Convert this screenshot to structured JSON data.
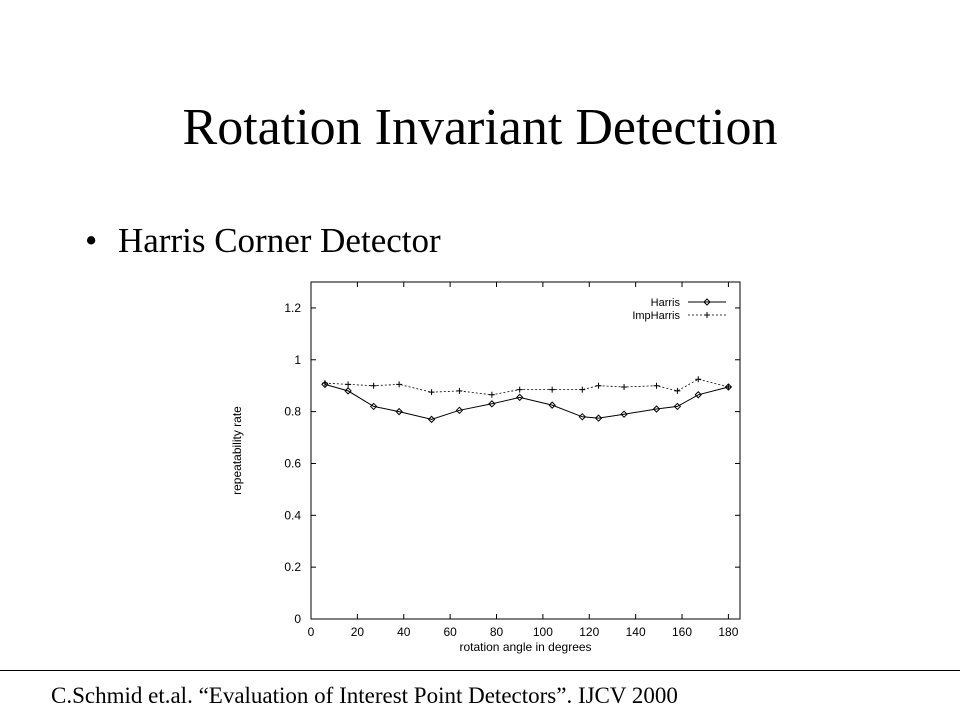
{
  "slide": {
    "title": "Rotation Invariant Detection",
    "bullet": "Harris Corner Detector",
    "citation": "C.Schmid et.al. “Evaluation of Interest Point Detectors”. IJCV 2000"
  },
  "chart_data": {
    "type": "line",
    "title": "",
    "xlabel": "rotation angle in degrees",
    "ylabel": "repeatability rate",
    "xlim": [
      0,
      185
    ],
    "ylim": [
      0,
      1.3
    ],
    "xticks": [
      0,
      20,
      40,
      60,
      80,
      100,
      120,
      140,
      160,
      180
    ],
    "yticks": [
      0,
      0.2,
      0.4,
      0.6,
      0.8,
      1,
      1.2
    ],
    "grid": false,
    "legend_position": "top-right",
    "series": [
      {
        "name": "Harris",
        "style": "solid",
        "marker": "diamond",
        "x": [
          6,
          16,
          27,
          38,
          52,
          64,
          78,
          90,
          104,
          117,
          124,
          135,
          149,
          158,
          167,
          180
        ],
        "y": [
          0.905,
          0.88,
          0.82,
          0.8,
          0.77,
          0.805,
          0.83,
          0.855,
          0.825,
          0.78,
          0.775,
          0.79,
          0.81,
          0.82,
          0.865,
          0.895
        ]
      },
      {
        "name": "ImpHarris",
        "style": "dashed",
        "marker": "plus",
        "x": [
          6,
          16,
          27,
          38,
          52,
          64,
          78,
          90,
          104,
          117,
          124,
          135,
          149,
          158,
          167,
          180
        ],
        "y": [
          0.91,
          0.905,
          0.9,
          0.905,
          0.875,
          0.88,
          0.865,
          0.885,
          0.885,
          0.885,
          0.9,
          0.895,
          0.9,
          0.88,
          0.925,
          0.895
        ]
      }
    ]
  }
}
